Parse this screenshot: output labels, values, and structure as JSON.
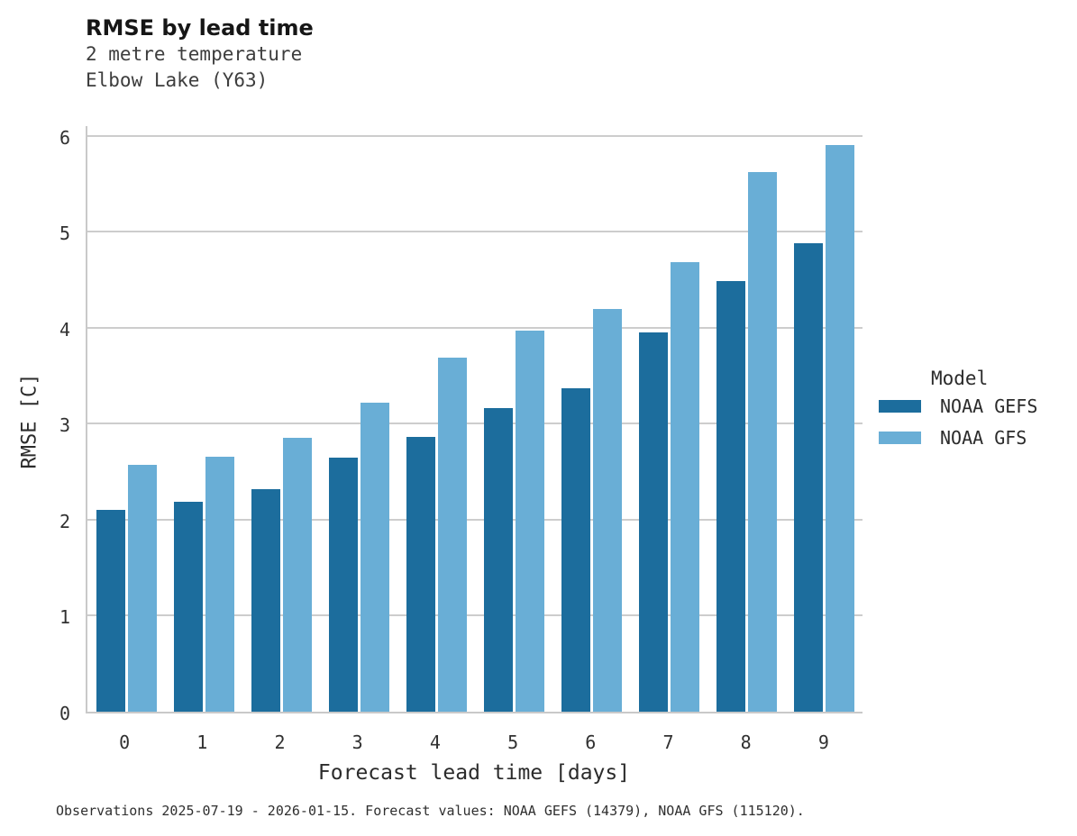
{
  "header": {
    "title": "RMSE by lead time",
    "subtitle_line1": "2 metre temperature",
    "subtitle_line2": "Elbow Lake (Y63)"
  },
  "chart_data": {
    "type": "bar",
    "title": "RMSE by lead time",
    "subtitle": "2 metre temperature / Elbow Lake (Y63)",
    "categories": [
      "0",
      "1",
      "2",
      "3",
      "4",
      "5",
      "6",
      "7",
      "8",
      "9"
    ],
    "series": [
      {
        "name": "NOAA GEFS",
        "color": "#1c6d9d",
        "values": [
          2.1,
          2.19,
          2.32,
          2.65,
          2.86,
          3.16,
          3.37,
          3.95,
          4.49,
          4.88
        ]
      },
      {
        "name": "NOAA GFS",
        "color": "#69aed6",
        "values": [
          2.57,
          2.66,
          2.85,
          3.22,
          3.69,
          3.97,
          4.2,
          4.68,
          5.62,
          5.9
        ]
      }
    ],
    "xlabel": "Forecast lead time [days]",
    "ylabel": "RMSE [C]",
    "yticks": [
      0,
      1,
      2,
      3,
      4,
      5,
      6
    ],
    "ylim": [
      0,
      6.12
    ],
    "grid": "horizontal",
    "legend_title": "Model",
    "legend_position": "right"
  },
  "caption": "Observations 2025-07-19 - 2026-01-15. Forecast values: NOAA GEFS (14379), NOAA GFS (115120).",
  "colors": {
    "gefs_bar": "#1c6d9d",
    "gfs_bar": "#69aed6",
    "gridline": "#cdcdcd",
    "spine": "#c9c9c9",
    "title_text": "#161616",
    "subtitle_text": "#3d3d3d",
    "tick_text": "#313131"
  }
}
